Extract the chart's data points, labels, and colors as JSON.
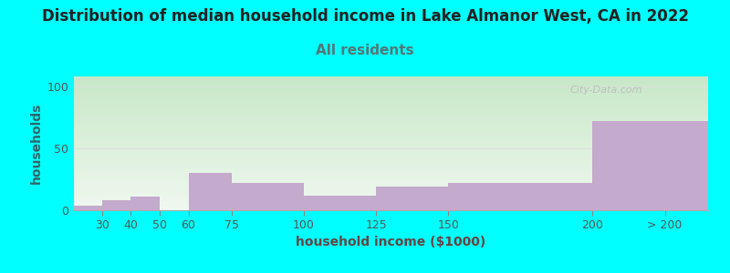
{
  "title": "Distribution of median household income in Lake Almanor West, CA in 2022",
  "subtitle": "All residents",
  "xlabel": "household income ($1000)",
  "ylabel": "households",
  "background_color": "#00FFFF",
  "bar_color": "#C4AACC",
  "categories": [
    "30",
    "40",
    "50",
    "60",
    "75",
    "100",
    "125",
    "150",
    "200",
    "> 200"
  ],
  "values": [
    4,
    8,
    11,
    0,
    30,
    22,
    12,
    19,
    22,
    72
  ],
  "bar_lefts": [
    20,
    30,
    40,
    50,
    60,
    75,
    100,
    125,
    150,
    200
  ],
  "bar_rights": [
    30,
    40,
    50,
    60,
    75,
    100,
    125,
    150,
    200,
    240
  ],
  "xtick_positions": [
    30,
    40,
    50,
    60,
    75,
    100,
    125,
    150,
    200
  ],
  "xtick_last_pos": 225,
  "xlim": [
    20,
    240
  ],
  "ylim": [
    0,
    108
  ],
  "yticks": [
    0,
    50,
    100
  ],
  "title_fontsize": 12,
  "subtitle_fontsize": 11,
  "axis_label_fontsize": 10,
  "tick_fontsize": 9,
  "title_color": "#222222",
  "subtitle_color": "#557777",
  "ylabel_color": "#336666",
  "xlabel_color": "#664444",
  "watermark_text": "City-Data.com",
  "watermark_color": "#bbbbbb",
  "gradient_top": "#c8e8c8",
  "gradient_bottom": "#f0f8f0"
}
